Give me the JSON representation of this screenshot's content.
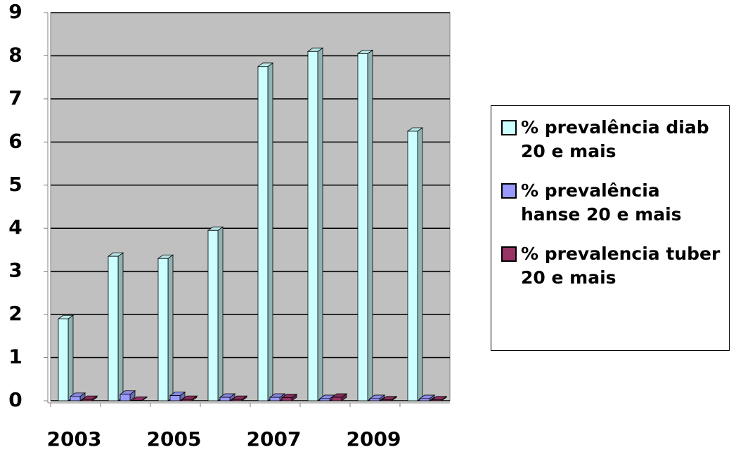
{
  "chart_data": {
    "type": "bar3d",
    "categories": [
      "2003",
      null,
      "2005",
      null,
      "2007",
      null,
      "2009",
      null
    ],
    "series": [
      {
        "name": "% prevalência diab 20 e mais",
        "color": "#ccffff",
        "values": [
          1.9,
          3.35,
          3.3,
          3.95,
          7.75,
          8.1,
          8.05,
          6.25
        ]
      },
      {
        "name": "% prevalência hanse 20 e mais",
        "color": "#9999ff",
        "values": [
          0.1,
          0.15,
          0.12,
          0.08,
          0.08,
          0.05,
          0.05,
          0.05
        ]
      },
      {
        "name": "% prevalencia tuber 20 e mais",
        "color": "#993366",
        "values": [
          0.03,
          0.01,
          0.03,
          0.03,
          0.07,
          0.08,
          0.02,
          0.02
        ]
      }
    ],
    "ylim": [
      0,
      9
    ],
    "yticks": [
      0,
      1,
      2,
      3,
      4,
      5,
      6,
      7,
      8,
      9
    ],
    "grid": true
  }
}
